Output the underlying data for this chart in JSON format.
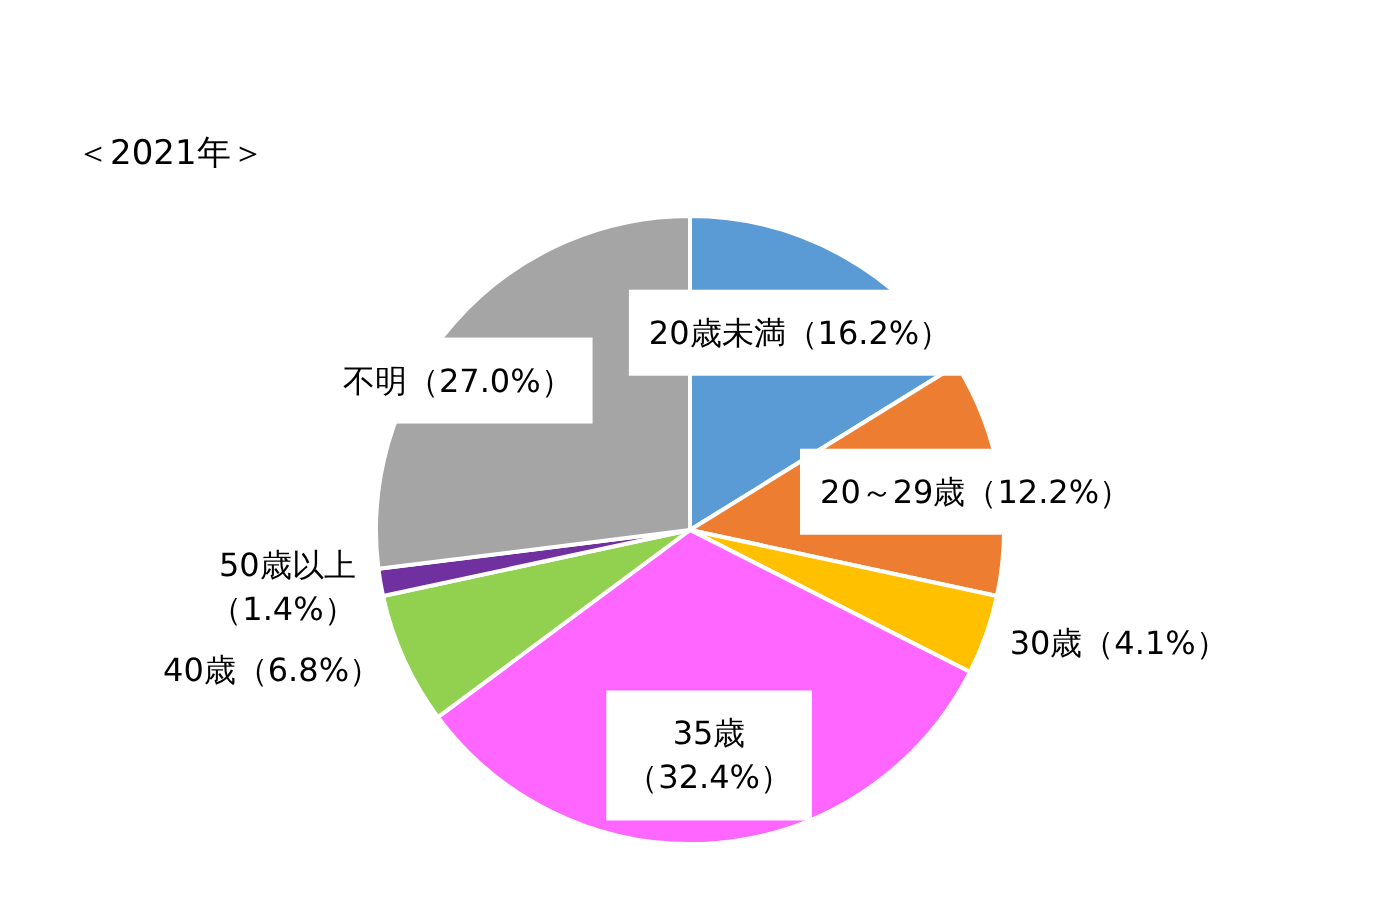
{
  "chart_data": {
    "type": "pie",
    "title": "＜2021年＞",
    "categories": [
      "20歳未満",
      "20～29歳",
      "30歳",
      "35歳",
      "40歳",
      "50歳以上",
      "不明"
    ],
    "values": [
      16.2,
      12.2,
      4.1,
      32.4,
      6.8,
      1.4,
      27.0
    ],
    "value_labels": [
      "（16.2%）",
      "（12.2%）",
      "（4.1%）",
      "（32.4%）",
      "（6.8%）",
      "（1.4%）",
      "（27.0%）"
    ],
    "colors": [
      "#5b9bd5",
      "#ed7d31",
      "#ffc000",
      "#ff66ff",
      "#92d050",
      "#7030a0",
      "#a5a5a5"
    ]
  }
}
